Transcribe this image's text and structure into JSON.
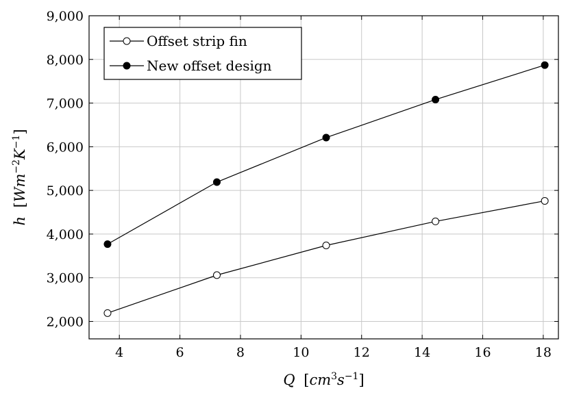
{
  "chart_data": {
    "type": "line",
    "xlim": [
      3,
      18.5
    ],
    "ylim": [
      1600,
      9000
    ],
    "x_ticks": [
      4,
      6,
      8,
      10,
      12,
      14,
      16,
      18
    ],
    "y_ticks": [
      2000,
      3000,
      4000,
      5000,
      6000,
      7000,
      8000,
      9000
    ],
    "x_tick_labels": [
      "4",
      "6",
      "8",
      "10",
      "12",
      "14",
      "16",
      "18"
    ],
    "y_tick_labels": [
      "2,000",
      "3,000",
      "4,000",
      "5,000",
      "6,000",
      "7,000",
      "8,000",
      "9,000"
    ],
    "xlabel": {
      "base": "Q",
      "open": "[",
      "unit1": "cm",
      "sup1": "3",
      "unit2": "s",
      "sup2": "−1",
      "close": "]"
    },
    "ylabel": {
      "base": "h",
      "open": "[",
      "unit1": "Wm",
      "sup1": "−2",
      "unit2": "K",
      "sup2": "−1",
      "close": "]"
    },
    "grid": true,
    "legend_position": "top-left",
    "series": [
      {
        "name": "Offset strip fin",
        "marker": "open-circle",
        "x": [
          3.61,
          7.22,
          10.83,
          14.44,
          18.05
        ],
        "y": [
          2190,
          3060,
          3740,
          4290,
          4760
        ]
      },
      {
        "name": "New offset design",
        "marker": "filled-circle",
        "x": [
          3.61,
          7.22,
          10.83,
          14.44,
          18.05
        ],
        "y": [
          3770,
          5190,
          6210,
          7080,
          7870
        ]
      }
    ]
  }
}
